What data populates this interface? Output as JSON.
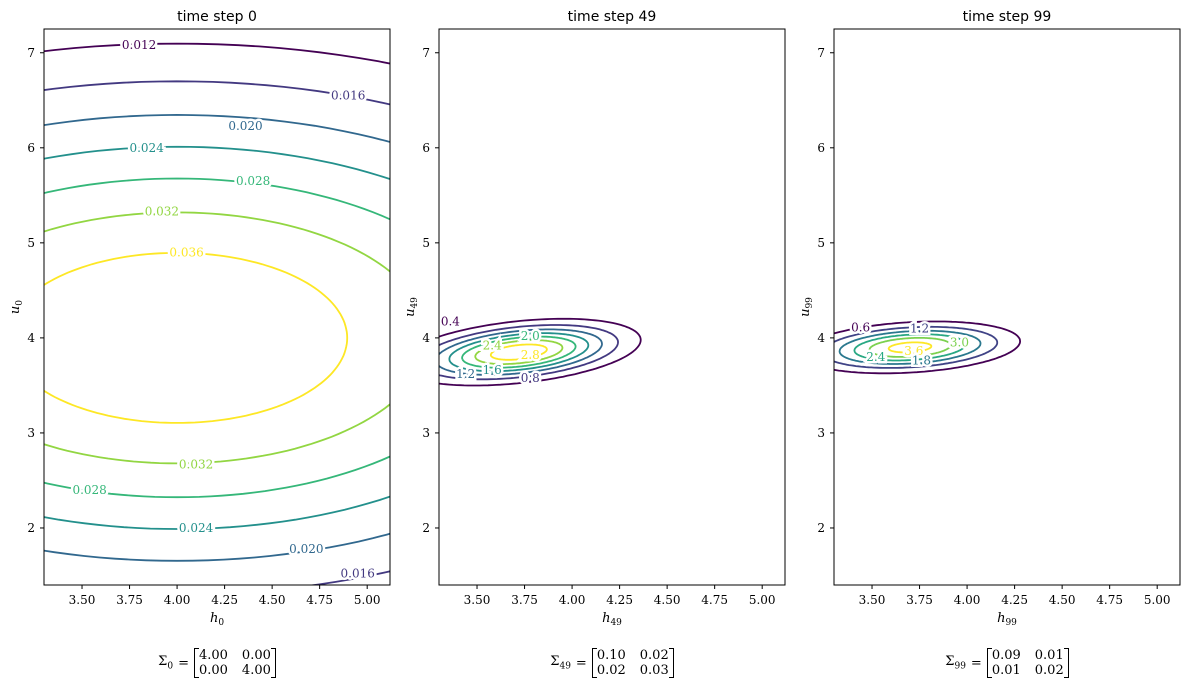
{
  "chart_data": [
    {
      "type": "contour",
      "title": "time step 0",
      "xlabel": {
        "symbol": "h",
        "sub": "0"
      },
      "ylabel": {
        "symbol": "u",
        "sub": "0"
      },
      "xlim": [
        3.3,
        5.12
      ],
      "ylim": [
        1.4,
        7.25
      ],
      "xticks": [
        "3.50",
        "3.75",
        "4.00",
        "4.25",
        "4.50",
        "4.75",
        "5.00"
      ],
      "yticks": [
        "2",
        "3",
        "4",
        "5",
        "6",
        "7"
      ],
      "mean": [
        4.0,
        4.0
      ],
      "sigma": [
        [
          4.0,
          0.0
        ],
        [
          0.0,
          4.0
        ]
      ],
      "sigma_text": [
        [
          "4.00",
          "0.00"
        ],
        [
          "0.00",
          "4.00"
        ]
      ],
      "sigma_label": {
        "symbol": "Σ",
        "sub": "0"
      },
      "levels": [
        0.012,
        0.016,
        0.02,
        0.024,
        0.028,
        0.032,
        0.036
      ],
      "level_labels": [
        {
          "text": "0.012",
          "level": 0.012,
          "pos": [
            3.8,
            7.08
          ]
        },
        {
          "text": "0.016",
          "level": 0.016,
          "pos": [
            4.9,
            6.55
          ]
        },
        {
          "text": "0.020",
          "level": 0.02,
          "pos": [
            4.36,
            6.23
          ]
        },
        {
          "text": "0.024",
          "level": 0.024,
          "pos": [
            3.84,
            6.0
          ]
        },
        {
          "text": "0.028",
          "level": 0.028,
          "pos": [
            4.4,
            5.65
          ]
        },
        {
          "text": "0.032",
          "level": 0.032,
          "pos": [
            3.92,
            5.33
          ]
        },
        {
          "text": "0.036",
          "level": 0.036,
          "pos": [
            4.05,
            4.9
          ]
        },
        {
          "text": "0.032",
          "level": 0.032,
          "pos": [
            4.1,
            2.67
          ]
        },
        {
          "text": "0.028",
          "level": 0.028,
          "pos": [
            3.54,
            2.4
          ]
        },
        {
          "text": "0.024",
          "level": 0.024,
          "pos": [
            4.1,
            2.0
          ]
        },
        {
          "text": "0.020",
          "level": 0.02,
          "pos": [
            4.68,
            1.78
          ]
        },
        {
          "text": "0.016",
          "level": 0.016,
          "pos": [
            4.95,
            1.52
          ]
        }
      ]
    },
    {
      "type": "contour",
      "title": "time step 49",
      "xlabel": {
        "symbol": "h",
        "sub": "49"
      },
      "ylabel": {
        "symbol": "u",
        "sub": "49"
      },
      "xlim": [
        3.3,
        5.12
      ],
      "ylim": [
        1.4,
        7.25
      ],
      "xticks": [
        "3.50",
        "3.75",
        "4.00",
        "4.25",
        "4.50",
        "4.75",
        "5.00"
      ],
      "yticks": [
        "2",
        "3",
        "4",
        "5",
        "6",
        "7"
      ],
      "mean": [
        3.72,
        3.85
      ],
      "sigma": [
        [
          0.1,
          0.02
        ],
        [
          0.02,
          0.03
        ]
      ],
      "sigma_text": [
        [
          "0.10",
          "0.02"
        ],
        [
          "0.02",
          "0.03"
        ]
      ],
      "sigma_label": {
        "symbol": "Σ",
        "sub": "49"
      },
      "levels": [
        0.4,
        0.8,
        1.2,
        1.6,
        2.0,
        2.4,
        2.8
      ],
      "level_labels": [
        {
          "text": "0.4",
          "level": 0.4,
          "pos": [
            3.36,
            4.17
          ]
        },
        {
          "text": "2.0",
          "level": 2.0,
          "pos": [
            3.78,
            4.02
          ]
        },
        {
          "text": "2.4",
          "level": 2.4,
          "pos": [
            3.58,
            3.92
          ]
        },
        {
          "text": "2.8",
          "level": 2.8,
          "pos": [
            3.78,
            3.82
          ]
        },
        {
          "text": "1.2",
          "level": 1.2,
          "pos": [
            3.44,
            3.62
          ]
        },
        {
          "text": "1.6",
          "level": 1.6,
          "pos": [
            3.58,
            3.66
          ]
        },
        {
          "text": "0.8",
          "level": 0.8,
          "pos": [
            3.78,
            3.58
          ]
        }
      ]
    },
    {
      "type": "contour",
      "title": "time step 99",
      "xlabel": {
        "symbol": "h",
        "sub": "99"
      },
      "ylabel": {
        "symbol": "u",
        "sub": "99"
      },
      "xlim": [
        3.3,
        5.12
      ],
      "ylim": [
        1.4,
        7.25
      ],
      "xticks": [
        "3.50",
        "3.75",
        "4.00",
        "4.25",
        "4.50",
        "4.75",
        "5.00"
      ],
      "yticks": [
        "2",
        "3",
        "4",
        "5",
        "6",
        "7"
      ],
      "mean": [
        3.7,
        3.9
      ],
      "sigma": [
        [
          0.09,
          0.01
        ],
        [
          0.01,
          0.02
        ]
      ],
      "sigma_text": [
        [
          "0.09",
          "0.01"
        ],
        [
          "0.01",
          "0.02"
        ]
      ],
      "sigma_label": {
        "symbol": "Σ",
        "sub": "99"
      },
      "levels": [
        0.6,
        1.2,
        1.8,
        2.4,
        3.0,
        3.6
      ],
      "level_labels": [
        {
          "text": "0.6",
          "level": 0.6,
          "pos": [
            3.44,
            4.11
          ]
        },
        {
          "text": "1.2",
          "level": 1.2,
          "pos": [
            3.75,
            4.1
          ]
        },
        {
          "text": "3.0",
          "level": 3.0,
          "pos": [
            3.96,
            3.95
          ]
        },
        {
          "text": "3.6",
          "level": 3.6,
          "pos": [
            3.72,
            3.86
          ]
        },
        {
          "text": "2.4",
          "level": 2.4,
          "pos": [
            3.52,
            3.8
          ]
        },
        {
          "text": "1.8",
          "level": 1.8,
          "pos": [
            3.76,
            3.76
          ]
        }
      ]
    }
  ]
}
